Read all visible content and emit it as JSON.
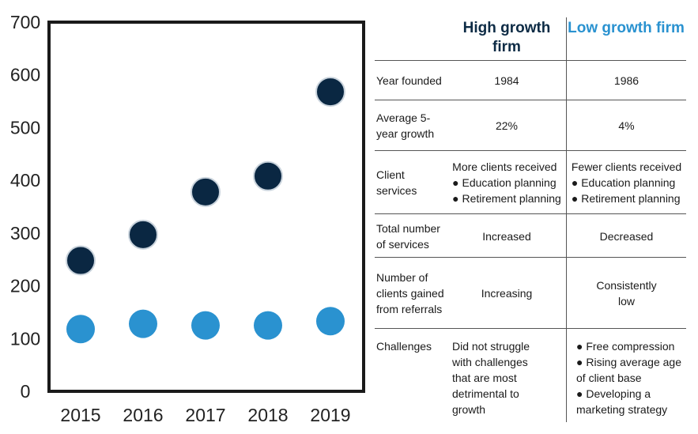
{
  "chart_data": {
    "type": "scatter",
    "x": [
      "2015",
      "2016",
      "2017",
      "2018",
      "2019"
    ],
    "ylim": [
      0,
      700
    ],
    "yticks": [
      "0",
      "100",
      "200",
      "300",
      "400",
      "500",
      "600",
      "700"
    ],
    "series": [
      {
        "color": "#0a2742",
        "values": [
          248,
          297,
          378,
          408,
          568
        ]
      },
      {
        "color": "#2a92d0",
        "values": [
          118,
          128,
          125,
          125,
          133
        ]
      }
    ]
  },
  "table": {
    "headers": {
      "high": "High growth firm",
      "low": "Low growth firm"
    },
    "rows": [
      {
        "label": "Year founded",
        "high": "1984",
        "low": "1986"
      },
      {
        "label": "Average 5-year growth",
        "high": "22%",
        "low": "4%"
      },
      {
        "label": "Client services",
        "high_lines": [
          "More clients received",
          "● Education planning",
          "● Retirement planning"
        ],
        "low_lines": [
          "Fewer clients received",
          "● Education planning",
          "● Retirement planning"
        ]
      },
      {
        "label": "Total number of services",
        "high": "Increased",
        "low": "Decreased"
      },
      {
        "label": "Number of clients gained from referrals",
        "high": "Increasing",
        "low": "Consistently low"
      },
      {
        "label": "Challenges",
        "high": "Did not struggle with challenges that are most detrimental to growth",
        "low_lines": [
          "● Free compression",
          "● Rising average age of client base",
          "● Developing a marketing strategy"
        ]
      }
    ]
  }
}
